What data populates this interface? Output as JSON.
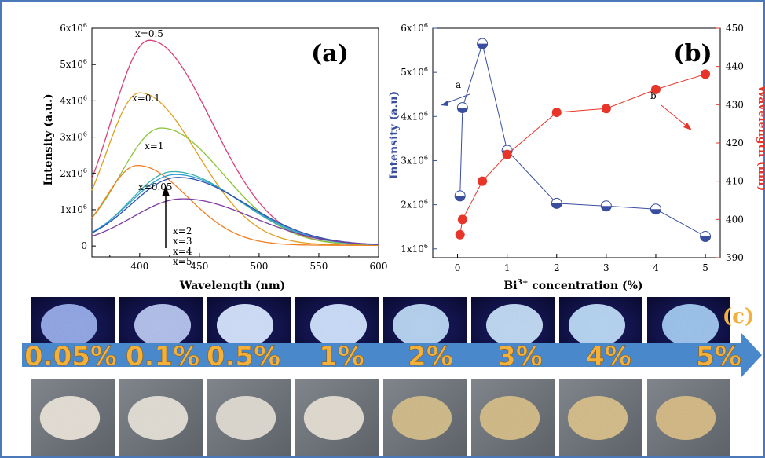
{
  "chart_data": [
    {
      "panel": "(a)",
      "type": "line",
      "xlabel": "Wavelength (nm)",
      "ylabel": "Intensity (a.u.)",
      "xlim": [
        360,
        600
      ],
      "ylim": [
        -300000,
        6000000
      ],
      "x_ticks": [
        "400",
        "450",
        "500",
        "550",
        "600"
      ],
      "y_ticks": [
        "0",
        "1x10",
        "2x10",
        "3x10",
        "4x10",
        "5x10",
        "6x10"
      ],
      "y_tick_exp": "6",
      "series": [
        {
          "name": "x=0.5",
          "color": "#d8407a",
          "peak_x": 408,
          "peak_y": 5650000,
          "w_left": 32,
          "w_right": 52
        },
        {
          "name": "x=0.1",
          "color": "#e0a020",
          "peak_x": 400,
          "peak_y": 4200000,
          "w_left": 28,
          "w_right": 48
        },
        {
          "name": "x=1",
          "color": "#8cc43a",
          "peak_x": 418,
          "peak_y": 3230000,
          "w_left": 34,
          "w_right": 52
        },
        {
          "name": "x=0.05",
          "color": "#f07d20",
          "peak_x": 398,
          "peak_y": 2200000,
          "w_left": 26,
          "w_right": 42
        },
        {
          "name": "x=2",
          "color": "#3ab0a8",
          "peak_x": 428,
          "peak_y": 2030000,
          "w_left": 36,
          "w_right": 55
        },
        {
          "name": "x=3",
          "color": "#2f9ed8",
          "peak_x": 430,
          "peak_y": 1950000,
          "w_left": 38,
          "w_right": 56
        },
        {
          "name": "x=4",
          "color": "#3050a8",
          "peak_x": 432,
          "peak_y": 1870000,
          "w_left": 39,
          "w_right": 57
        },
        {
          "name": "x=5",
          "color": "#7a3aa0",
          "peak_x": 436,
          "peak_y": 1280000,
          "w_left": 42,
          "w_right": 58
        }
      ]
    },
    {
      "panel": "(b)",
      "type": "scatter",
      "xlabel": "Bi concentration (%)",
      "xlabel_sup": "3+",
      "ylabel_left": "Intensity (a.u)",
      "ylabel_right": "Wavelength (nm)",
      "xlim": [
        -0.5,
        5.3
      ],
      "x_ticks": [
        "0",
        "1",
        "2",
        "3",
        "4",
        "5"
      ],
      "ylim_left": [
        800000,
        6000000
      ],
      "y_ticks_left": [
        "1x10",
        "2x10",
        "3x10",
        "4x10",
        "5x10",
        "6x10"
      ],
      "y_tick_exp": "6",
      "ylim_right": [
        390,
        450
      ],
      "y_ticks_right": [
        "390",
        "400",
        "410",
        "420",
        "430",
        "440",
        "450"
      ],
      "series": [
        {
          "name": "a",
          "color": "#3a4ea0",
          "axis": "left",
          "x": [
            0.05,
            0.1,
            0.5,
            1,
            2,
            3,
            4,
            5
          ],
          "y": [
            2200000,
            4200000,
            5650000,
            3230000,
            2030000,
            1970000,
            1900000,
            1280000
          ]
        },
        {
          "name": "b",
          "color": "#e8352a",
          "axis": "right",
          "x": [
            0.05,
            0.1,
            0.5,
            1,
            2,
            3,
            4,
            5
          ],
          "y": [
            396,
            400,
            410,
            417,
            428,
            429,
            434,
            438
          ]
        }
      ]
    }
  ],
  "panel_c": {
    "label": "(c)",
    "concentrations": [
      "0.05%",
      "0.1%",
      "0.5%",
      "1%",
      "2%",
      "3%",
      "4%",
      "5%"
    ],
    "arrow_color": "#4a88cc",
    "uv_photo_colors": [
      "#8fa6e8",
      "#b3c3ef",
      "#d6e6ff",
      "#cfe4ff",
      "#b7d8f4",
      "#c2def6",
      "#b8daf6",
      "#9bc7f0"
    ],
    "day_photo_colors": [
      "#dcd6cc",
      "#d8d4cb",
      "#d4cfc6",
      "#d8d2c6",
      "#c6b07c",
      "#c8b07a",
      "#cbb27c",
      "#caae78"
    ]
  }
}
